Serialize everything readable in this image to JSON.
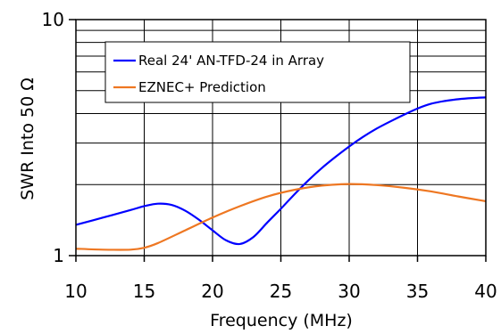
{
  "chart_data": {
    "type": "line",
    "xlabel": "Frequency (MHz)",
    "ylabel": "SWR Into 50 Ω",
    "xlim": [
      10,
      40
    ],
    "ylim": [
      1,
      10
    ],
    "yscale": "log",
    "x_ticks": [
      "10",
      "15",
      "20",
      "25",
      "30",
      "35",
      "40"
    ],
    "y_ticks": [
      "1",
      "10"
    ],
    "grid": true,
    "legend_position": "top-left",
    "series": [
      {
        "name": "Real 24' AN-TFD-24 in Array",
        "color": "#0000ff",
        "x": [
          10,
          12,
          14,
          15,
          16,
          17,
          18,
          19,
          20,
          21,
          22,
          23,
          24,
          25,
          26,
          27,
          28,
          29,
          30,
          31,
          32,
          33,
          34,
          35,
          36,
          37,
          38,
          39,
          40
        ],
        "y": [
          1.35,
          1.45,
          1.56,
          1.62,
          1.66,
          1.64,
          1.55,
          1.42,
          1.28,
          1.16,
          1.12,
          1.2,
          1.38,
          1.58,
          1.82,
          2.08,
          2.35,
          2.62,
          2.9,
          3.18,
          3.45,
          3.7,
          3.95,
          4.2,
          4.4,
          4.52,
          4.6,
          4.65,
          4.68
        ]
      },
      {
        "name": "EZNEC+ Prediction",
        "color": "#ee7722",
        "x": [
          10,
          12,
          14,
          15,
          16,
          18,
          20,
          22,
          24,
          26,
          28,
          30,
          32,
          34,
          36,
          38,
          40
        ],
        "y": [
          1.07,
          1.06,
          1.06,
          1.08,
          1.13,
          1.28,
          1.45,
          1.62,
          1.78,
          1.9,
          1.98,
          2.01,
          1.99,
          1.94,
          1.87,
          1.78,
          1.7
        ]
      }
    ]
  }
}
